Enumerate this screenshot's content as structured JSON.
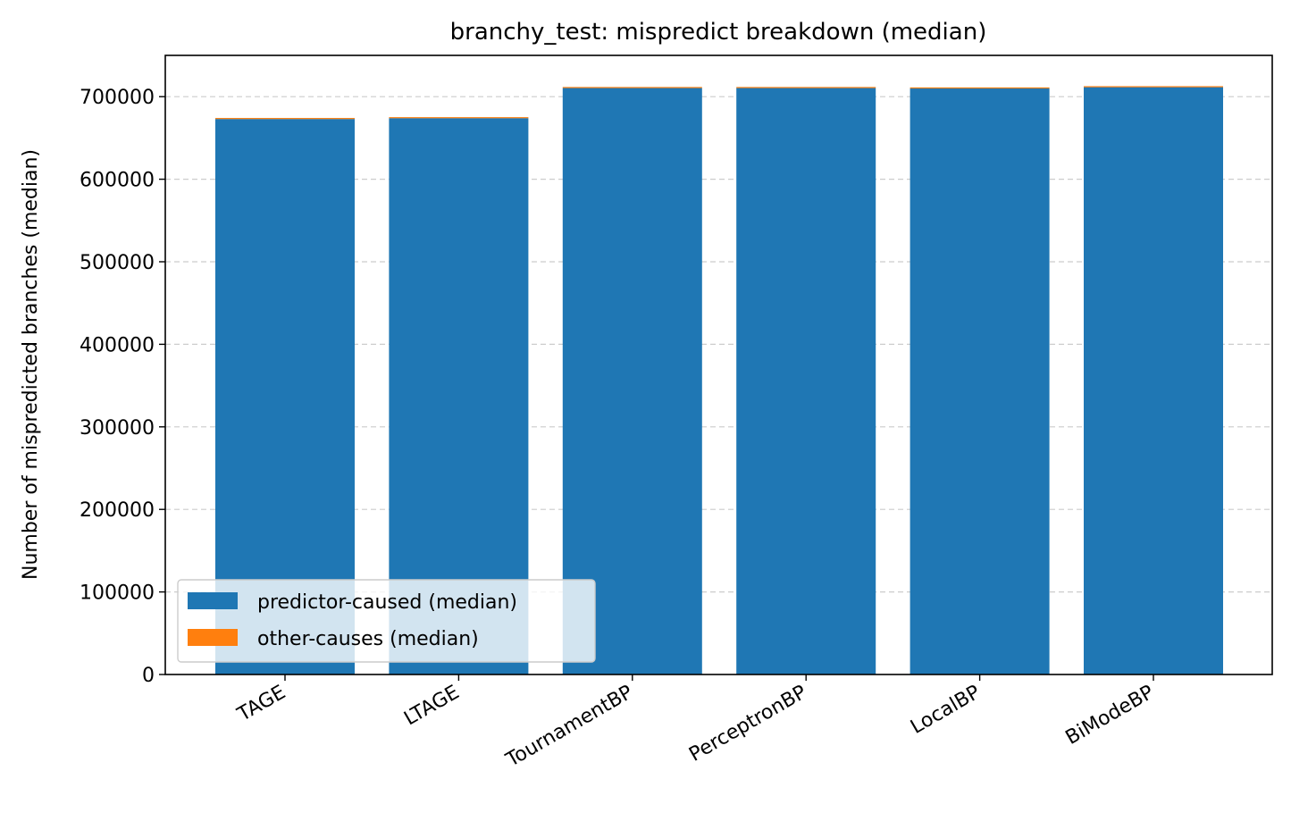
{
  "chart_data": {
    "type": "bar",
    "stacked": true,
    "title": "branchy_test: mispredict breakdown (median)",
    "xlabel": "",
    "ylabel": "Number of mispredicted branches (median)",
    "ylim": [
      0,
      750000
    ],
    "yticks": [
      0,
      100000,
      200000,
      300000,
      400000,
      500000,
      600000,
      700000
    ],
    "grid": "y-dashed",
    "legend_position": "lower-left",
    "categories": [
      "TAGE",
      "LTAGE",
      "TournamentBP",
      "PerceptronBP",
      "LocalBP",
      "BiModeBP"
    ],
    "series": [
      {
        "name": "predictor-caused (median)",
        "color": "#1f77b4",
        "values": [
          673000,
          674000,
          710500,
          710500,
          710000,
          711500
        ]
      },
      {
        "name": "other-causes (median)",
        "color": "#ff7f0e",
        "values": [
          1200,
          1200,
          1200,
          1200,
          1200,
          1200
        ]
      }
    ]
  }
}
